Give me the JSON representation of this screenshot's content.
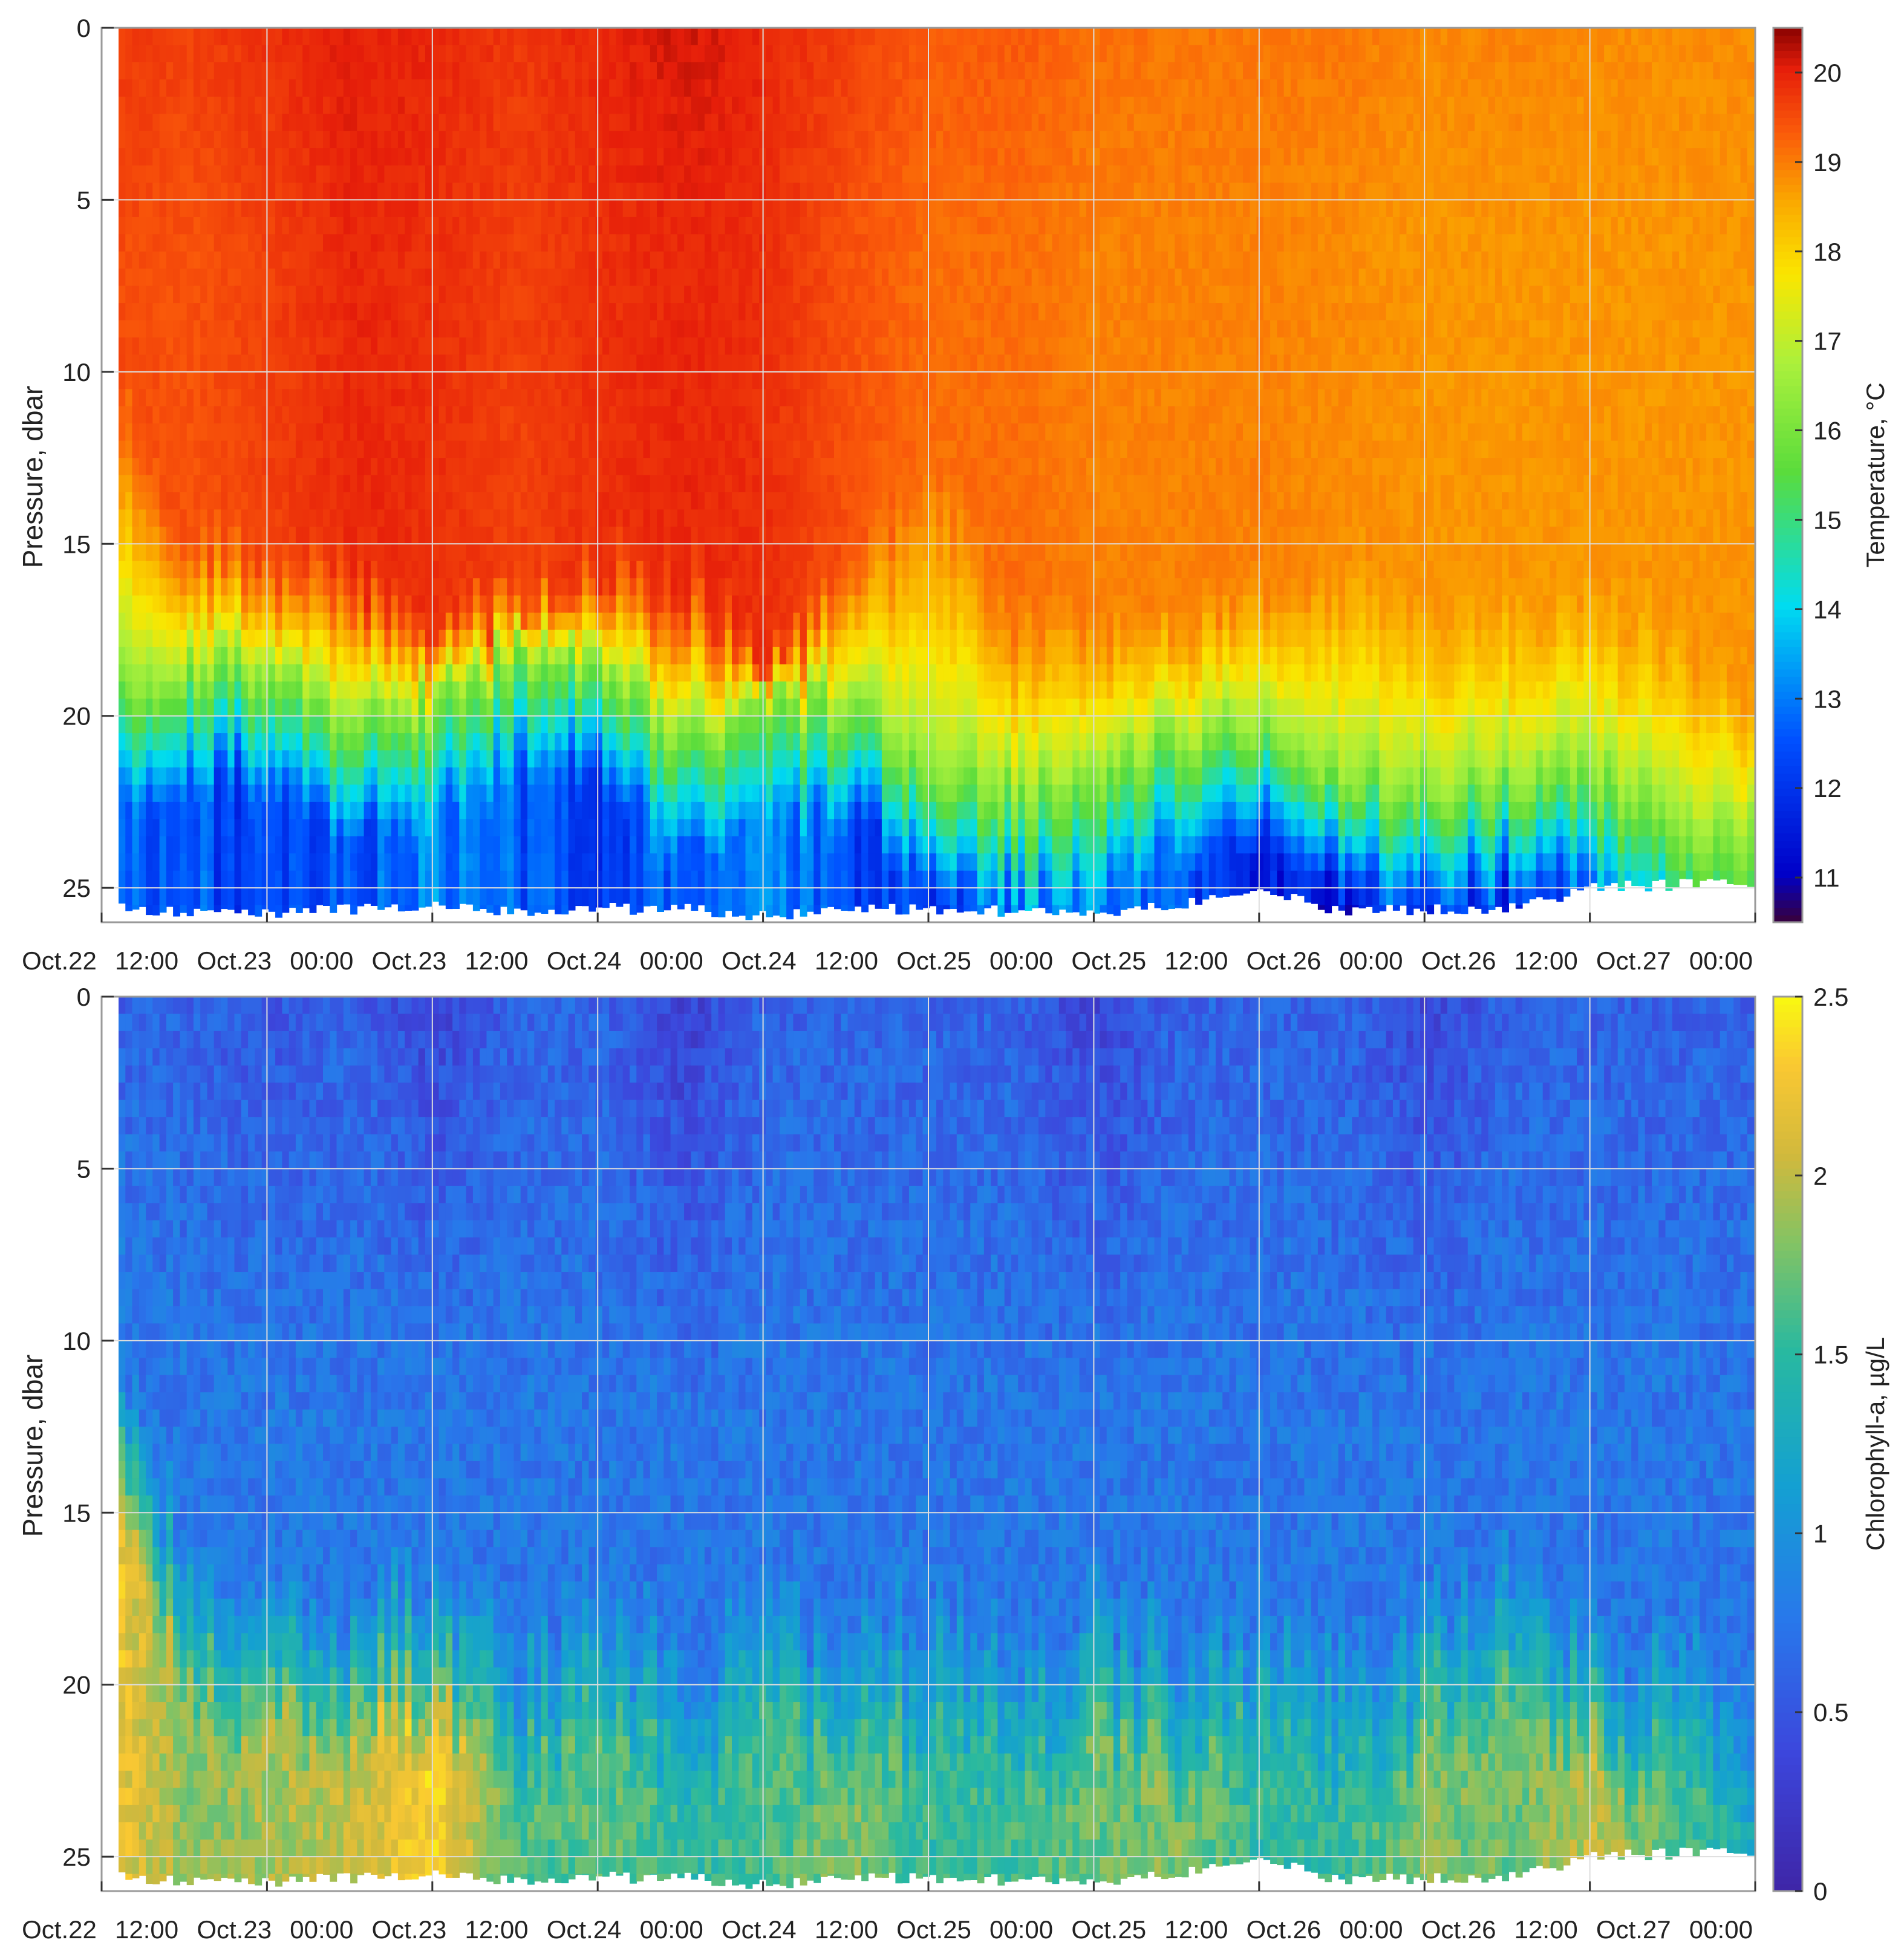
{
  "chart_data": [
    {
      "type": "heatmap",
      "title": "",
      "xlabel": "",
      "ylabel": "Pressure, dbar",
      "colorbar_label": "Temperature, °C",
      "colormap": "jet",
      "y_reversed": true,
      "ylim": [
        0,
        26
      ],
      "yticks": [
        0,
        5,
        10,
        15,
        20,
        25
      ],
      "clim": [
        10.5,
        20.5
      ],
      "colorbar_ticks": [
        11,
        12,
        13,
        14,
        15,
        16,
        17,
        18,
        19,
        20
      ],
      "x_tick_labels": [
        "Oct.22",
        "12:00",
        "Oct.23",
        "00:00",
        "Oct.23",
        "12:00",
        "Oct.24",
        "00:00",
        "Oct.24",
        "12:00",
        "Oct.25",
        "00:00",
        "Oct.25",
        "12:00",
        "Oct.26",
        "00:00",
        "Oct.26",
        "12:00",
        "Oct.27",
        "00:00"
      ],
      "x_grid_labels": [
        "Oct.22 12:00",
        "Oct.23 00:00",
        "Oct.23 12:00",
        "Oct.24 00:00",
        "Oct.24 12:00",
        "Oct.25 00:00",
        "Oct.25 12:00",
        "Oct.26 00:00",
        "Oct.26 12:00",
        "Oct.27 00:00"
      ],
      "x_hours": [
        0,
        6,
        12,
        18,
        24,
        30,
        36,
        42,
        48,
        54,
        60,
        66,
        72,
        78,
        84,
        90,
        96,
        102,
        108,
        114,
        119
      ],
      "surface_temperature": [
        19.7,
        19.6,
        19.8,
        20.0,
        19.9,
        19.7,
        19.9,
        20.1,
        19.9,
        19.6,
        19.3,
        19.3,
        19.1,
        19.0,
        19.0,
        19.0,
        18.8,
        18.9,
        18.8,
        18.8,
        18.8
      ],
      "mixed_layer_temperature": [
        19.5,
        19.4,
        19.6,
        19.9,
        19.8,
        19.6,
        19.8,
        19.9,
        19.8,
        19.4,
        19.1,
        19.1,
        18.9,
        18.9,
        18.9,
        18.8,
        18.7,
        18.7,
        18.7,
        18.7,
        18.7
      ],
      "thermocline_top_dbar": [
        8,
        14,
        15,
        15,
        17,
        16,
        15,
        15,
        18,
        15,
        12,
        16,
        17,
        17,
        16,
        15,
        16,
        16,
        16,
        17,
        19
      ],
      "thermocline_bottom_dbar": [
        19,
        18.5,
        18.5,
        20,
        19.5,
        18,
        18.5,
        20.5,
        19.5,
        19.5,
        21.5,
        22,
        21.5,
        20.5,
        20,
        21.5,
        22,
        21.5,
        21.5,
        23,
        23.5
      ],
      "bottom_temperature": [
        12.8,
        12.5,
        12.0,
        12.4,
        13.0,
        12.6,
        12.2,
        12.7,
        13.0,
        12.3,
        12.0,
        12.8,
        13.2,
        12.4,
        11.5,
        11.3,
        12.0,
        11.8,
        12.8,
        13.3,
        14.5
      ],
      "max_depth_dbar": [
        25.5,
        25.7,
        25.7,
        25.6,
        25.5,
        25.7,
        25.6,
        25.6,
        25.8,
        25.6,
        25.6,
        25.7,
        25.7,
        25.5,
        25.0,
        25.7,
        25.6,
        25.6,
        25.0,
        24.9,
        24.8
      ]
    },
    {
      "type": "heatmap",
      "title": "",
      "xlabel": "",
      "ylabel": "Pressure, dbar",
      "colorbar_label": "Chlorophyll-a, µg/L",
      "colormap": "parula",
      "y_reversed": true,
      "ylim": [
        0,
        26
      ],
      "yticks": [
        0,
        5,
        10,
        15,
        20,
        25
      ],
      "clim": [
        0,
        2.5
      ],
      "colorbar_ticks": [
        0,
        0.5,
        1,
        1.5,
        2,
        2.5
      ],
      "x_tick_labels": [
        "Oct.22",
        "12:00",
        "Oct.23",
        "00:00",
        "Oct.23",
        "12:00",
        "Oct.24",
        "00:00",
        "Oct.24",
        "12:00",
        "Oct.25",
        "00:00",
        "Oct.25",
        "12:00",
        "Oct.26",
        "00:00",
        "Oct.26",
        "12:00",
        "Oct.27",
        "00:00"
      ],
      "x_grid_labels": [
        "Oct.22 12:00",
        "Oct.23 00:00",
        "Oct.23 12:00",
        "Oct.24 00:00",
        "Oct.24 12:00",
        "Oct.25 00:00",
        "Oct.25 12:00",
        "Oct.26 00:00",
        "Oct.26 12:00",
        "Oct.27 00:00"
      ],
      "x_hours": [
        0,
        6,
        12,
        18,
        24,
        30,
        36,
        42,
        48,
        54,
        60,
        66,
        72,
        78,
        84,
        90,
        96,
        102,
        108,
        114,
        119
      ],
      "surface_chl": [
        0.6,
        0.6,
        0.5,
        0.6,
        0.35,
        0.6,
        0.6,
        0.3,
        0.6,
        0.6,
        0.6,
        0.6,
        0.35,
        0.6,
        0.6,
        0.6,
        0.35,
        0.6,
        0.6,
        0.6,
        0.6
      ],
      "deep_chl_max": [
        2.3,
        1.8,
        1.9,
        2.0,
        2.3,
        1.6,
        1.7,
        1.5,
        1.6,
        1.8,
        1.5,
        1.6,
        1.7,
        1.8,
        1.5,
        1.5,
        1.8,
        1.7,
        2.0,
        1.6,
        1.4
      ],
      "chl_layer_top_dbar": [
        10,
        15,
        17,
        17,
        16,
        18,
        17,
        18,
        17,
        18,
        17,
        18,
        17,
        18,
        17,
        18,
        17,
        16,
        18,
        18,
        19
      ],
      "max_depth_dbar": [
        25.5,
        25.7,
        25.7,
        25.6,
        25.5,
        25.7,
        25.6,
        25.6,
        25.8,
        25.6,
        25.6,
        25.7,
        25.7,
        25.5,
        25.0,
        25.7,
        25.6,
        25.6,
        25.0,
        24.9,
        24.8
      ]
    }
  ]
}
